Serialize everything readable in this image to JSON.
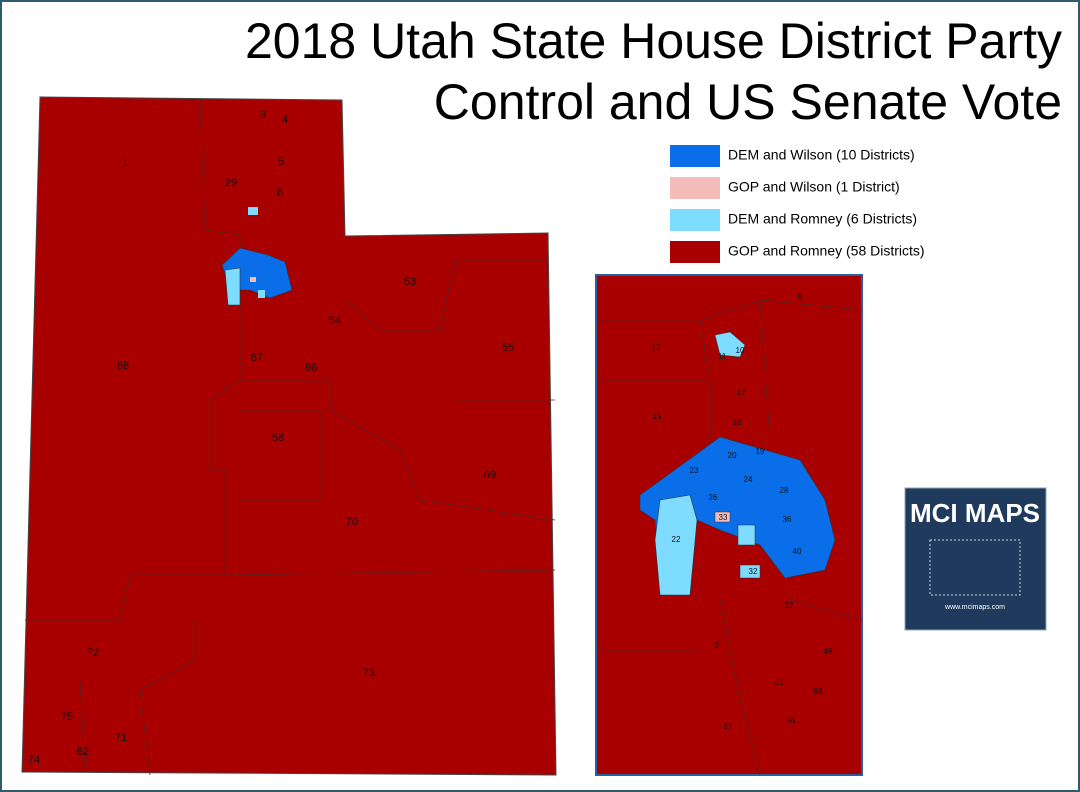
{
  "header": {
    "title_lines": [
      "2018 Utah State House District Party",
      "Control and US Senate Vote"
    ]
  },
  "legend": {
    "items": [
      {
        "label": "DEM and Wilson (10 Districts)",
        "color": "#0a6ee8"
      },
      {
        "label": "GOP and Wilson (1 District)",
        "color": "#f5bcbc"
      },
      {
        "label": "DEM and Romney (6 Districts)",
        "color": "#7ddcff"
      },
      {
        "label": "GOP and Romney (58 Districts)",
        "color": "#a80000"
      }
    ]
  },
  "main_map": {
    "labels": [
      "1",
      "3",
      "4",
      "5",
      "29",
      "6",
      "53",
      "54",
      "55",
      "68",
      "67",
      "66",
      "58",
      "69",
      "70",
      "72",
      "73",
      "75",
      "71",
      "74",
      "62"
    ]
  },
  "inset_map": {
    "labels": [
      "8",
      "12",
      "10",
      "11",
      "15",
      "17",
      "16",
      "19",
      "20",
      "23",
      "24",
      "28",
      "26",
      "22",
      "36",
      "40",
      "33",
      "32",
      "27",
      "2",
      "46",
      "61",
      "64",
      "66",
      "67"
    ]
  },
  "logo": {
    "title": "MCI MAPS",
    "url": "www.mcimaps.com"
  }
}
